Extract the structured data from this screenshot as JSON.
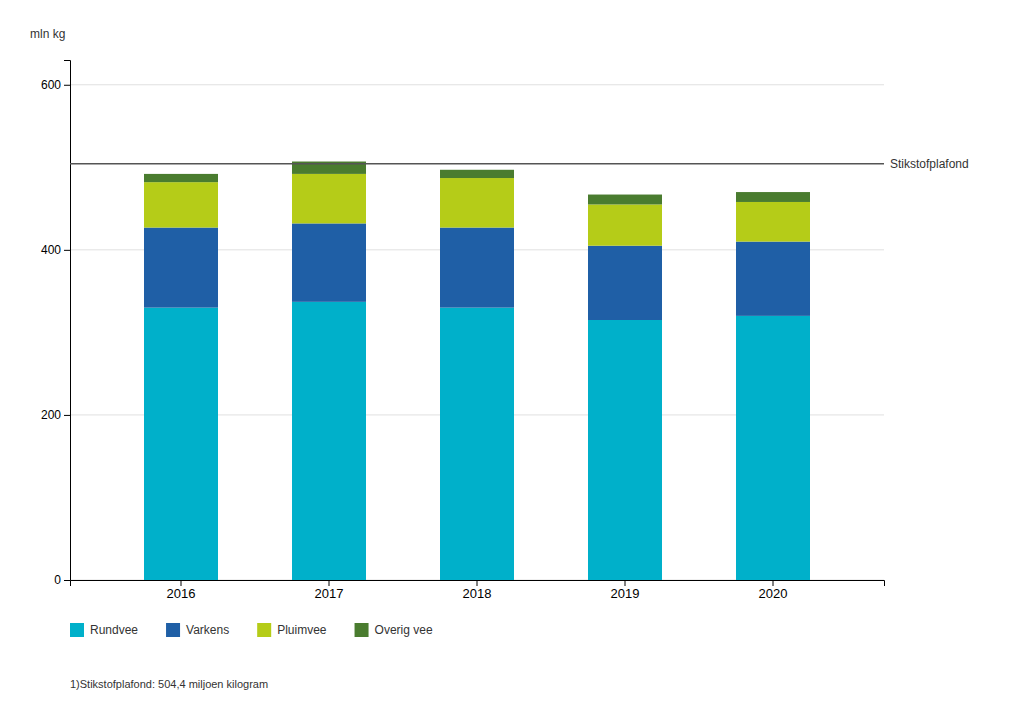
{
  "chart_data": {
    "type": "bar",
    "stacked": true,
    "ylabel": "mln kg",
    "categories": [
      "2016",
      "2017",
      "2018",
      "2019",
      "2020"
    ],
    "series": [
      {
        "name": "Rundvee",
        "color": "#00b0ca",
        "values": [
          330,
          337,
          330,
          315,
          320
        ]
      },
      {
        "name": "Varkens",
        "color": "#1f5fa6",
        "values": [
          97,
          95,
          97,
          90,
          90
        ]
      },
      {
        "name": "Pluimvee",
        "color": "#b5cc18",
        "values": [
          55,
          60,
          60,
          50,
          48
        ]
      },
      {
        "name": "Overig vee",
        "color": "#4a7c2f",
        "values": [
          10,
          15,
          10,
          12,
          12
        ]
      }
    ],
    "ylim": [
      0,
      630
    ],
    "yticks": [
      0,
      200,
      400,
      600
    ],
    "grid": true,
    "legend": "bottom",
    "annotations": [
      {
        "y": 504.4,
        "text": "Stikstofplafond"
      }
    ],
    "footnote": "1)Stikstofplafond: 504,4 miljoen kilogram"
  }
}
